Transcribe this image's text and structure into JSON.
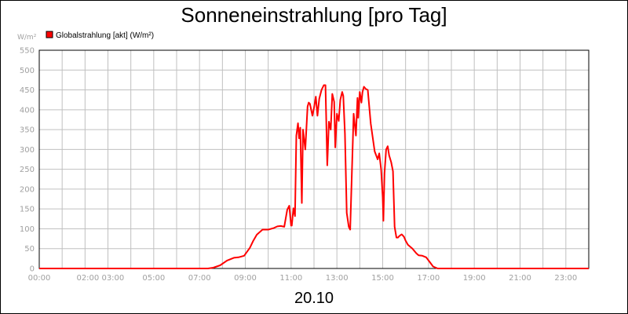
{
  "chart_data": {
    "type": "line",
    "title": "Sonneneinstrahlung [pro Tag]",
    "ylabel": "W/m²",
    "xlabel": "20.10",
    "ylim": [
      0,
      550
    ],
    "xlim_hours": [
      0,
      24
    ],
    "grid": true,
    "legend": {
      "placement": "top-left",
      "label": "Globalstrahlung [akt] (W/m²)",
      "color": "#ff0000"
    },
    "y_ticks": [
      "0",
      "50",
      "100",
      "150",
      "200",
      "250",
      "300",
      "350",
      "400",
      "450",
      "500",
      "550"
    ],
    "x_ticks": [
      {
        "hour": 0,
        "label": "00:00"
      },
      {
        "hour": 2.67,
        "label": "02:00 03:00"
      },
      {
        "hour": 5,
        "label": "05:00"
      },
      {
        "hour": 7,
        "label": "07:00"
      },
      {
        "hour": 9,
        "label": "09:00"
      },
      {
        "hour": 11,
        "label": "11:00"
      },
      {
        "hour": 13,
        "label": "13:00"
      },
      {
        "hour": 15,
        "label": "15:00"
      },
      {
        "hour": 17,
        "label": "17:00"
      },
      {
        "hour": 19,
        "label": "19:00"
      },
      {
        "hour": 21,
        "label": "21:00"
      },
      {
        "hour": 23,
        "label": "23:00"
      }
    ],
    "series": [
      {
        "name": "Globalstrahlung [akt] (W/m²)",
        "color": "#ff0000",
        "x": [
          0,
          7.37,
          7.6,
          7.9,
          8.2,
          8.5,
          8.7,
          8.95,
          9.2,
          9.35,
          9.5,
          9.75,
          10.0,
          10.25,
          10.4,
          10.55,
          10.7,
          10.83,
          10.92,
          11.0,
          11.03,
          11.1,
          11.17,
          11.23,
          11.3,
          11.35,
          11.4,
          11.47,
          11.52,
          11.62,
          11.72,
          11.77,
          11.82,
          11.93,
          12.0,
          12.08,
          12.15,
          12.23,
          12.33,
          12.43,
          12.5,
          12.58,
          12.65,
          12.73,
          12.8,
          12.88,
          12.93,
          13.0,
          13.08,
          13.15,
          13.23,
          13.28,
          13.35,
          13.43,
          13.52,
          13.58,
          13.73,
          13.83,
          13.9,
          13.93,
          14.0,
          14.07,
          14.12,
          14.18,
          14.27,
          14.35,
          14.48,
          14.65,
          14.78,
          14.85,
          14.93,
          15.0,
          15.03,
          15.08,
          15.15,
          15.22,
          15.28,
          15.37,
          15.45,
          15.52,
          15.6,
          15.67,
          15.73,
          15.83,
          15.93,
          16.0,
          16.1,
          16.3,
          16.47,
          16.57,
          16.73,
          16.9,
          17.07,
          17.2,
          17.4,
          17.65,
          17.83,
          18.0,
          18.15,
          18.3,
          18.43,
          18.57,
          18.67,
          19.0,
          24.0
        ],
        "y": [
          0,
          0,
          2,
          8,
          20,
          27,
          28,
          32,
          52,
          70,
          85,
          98,
          98,
          102,
          106,
          107,
          105,
          148,
          158,
          108,
          108,
          152,
          132,
          335,
          366,
          328,
          355,
          165,
          350,
          300,
          408,
          418,
          415,
          385,
          405,
          433,
          385,
          428,
          450,
          462,
          462,
          260,
          370,
          350,
          440,
          420,
          305,
          390,
          372,
          425,
          445,
          435,
          340,
          140,
          105,
          98,
          390,
          335,
          430,
          380,
          445,
          418,
          445,
          458,
          452,
          450,
          365,
          295,
          275,
          290,
          250,
          180,
          120,
          240,
          300,
          308,
          285,
          268,
          245,
          105,
          78,
          78,
          82,
          86,
          80,
          70,
          60,
          50,
          38,
          33,
          32,
          28,
          15,
          5,
          0,
          0,
          0,
          0,
          0,
          0,
          0,
          0,
          0,
          0,
          0
        ]
      }
    ]
  }
}
